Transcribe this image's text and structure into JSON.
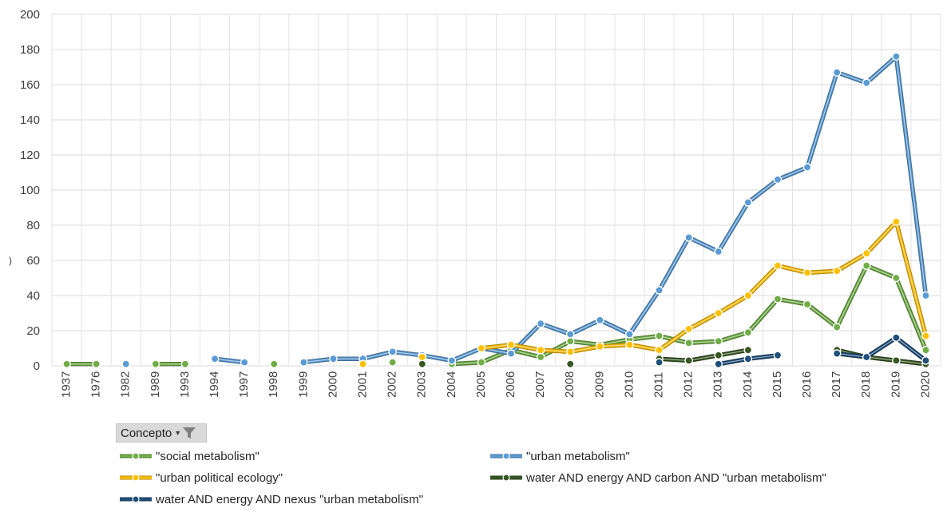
{
  "chart_data": {
    "type": "line",
    "title": "",
    "xlabel": "",
    "ylabel": ")",
    "ylim": [
      0,
      200
    ],
    "yticks": [
      0,
      20,
      40,
      60,
      80,
      100,
      120,
      140,
      160,
      180,
      200
    ],
    "grid": "vertical and horizontal",
    "legend_placement": "bottom",
    "categories": [
      "1937",
      "1976",
      "1982",
      "1989",
      "1993",
      "1994",
      "1997",
      "1998",
      "1999",
      "2000",
      "2001",
      "2002",
      "2003",
      "2004",
      "2005",
      "2006",
      "2007",
      "2008",
      "2009",
      "2010",
      "2011",
      "2012",
      "2013",
      "2014",
      "2015",
      "2016",
      "2017",
      "2018",
      "2019",
      "2020"
    ],
    "series": [
      {
        "name": "\"social metabolism\"",
        "color": "#70ad47",
        "values": [
          1,
          1,
          null,
          1,
          1,
          null,
          null,
          1,
          null,
          null,
          null,
          2,
          null,
          1,
          2,
          9,
          5,
          14,
          12,
          15,
          17,
          13,
          14,
          19,
          38,
          35,
          22,
          57,
          50,
          9
        ]
      },
      {
        "name": "\"urban metabolism\"",
        "color": "#5b9bd5",
        "values": [
          null,
          null,
          1,
          null,
          null,
          4,
          2,
          null,
          2,
          4,
          4,
          8,
          6,
          3,
          10,
          7,
          24,
          18,
          26,
          18,
          43,
          73,
          65,
          93,
          106,
          113,
          167,
          161,
          176,
          40
        ]
      },
      {
        "name": "\"urban political ecology\"",
        "color": "#ffc000",
        "values": [
          null,
          null,
          null,
          null,
          null,
          null,
          null,
          null,
          null,
          null,
          1,
          null,
          5,
          null,
          10,
          12,
          9,
          8,
          11,
          12,
          9,
          21,
          30,
          40,
          57,
          53,
          54,
          64,
          82,
          17
        ]
      },
      {
        "name": "water AND energy AND carbon AND \"urban metabolism\"",
        "color": "#375623",
        "values": [
          null,
          null,
          null,
          null,
          null,
          null,
          null,
          null,
          null,
          null,
          null,
          null,
          1,
          null,
          null,
          null,
          null,
          1,
          null,
          null,
          4,
          3,
          6,
          9,
          null,
          null,
          9,
          5,
          3,
          1
        ]
      },
      {
        "name": "water  AND energy  AND nexus  \"urban metabolism\"",
        "color": "#1f4e79",
        "values": [
          null,
          null,
          null,
          null,
          null,
          null,
          null,
          null,
          null,
          null,
          null,
          null,
          null,
          null,
          null,
          null,
          null,
          null,
          null,
          null,
          2,
          null,
          1,
          4,
          6,
          null,
          7,
          5,
          16,
          3
        ]
      }
    ]
  },
  "filter": {
    "label": "Concepto",
    "icon": "filter-funnel-icon"
  }
}
